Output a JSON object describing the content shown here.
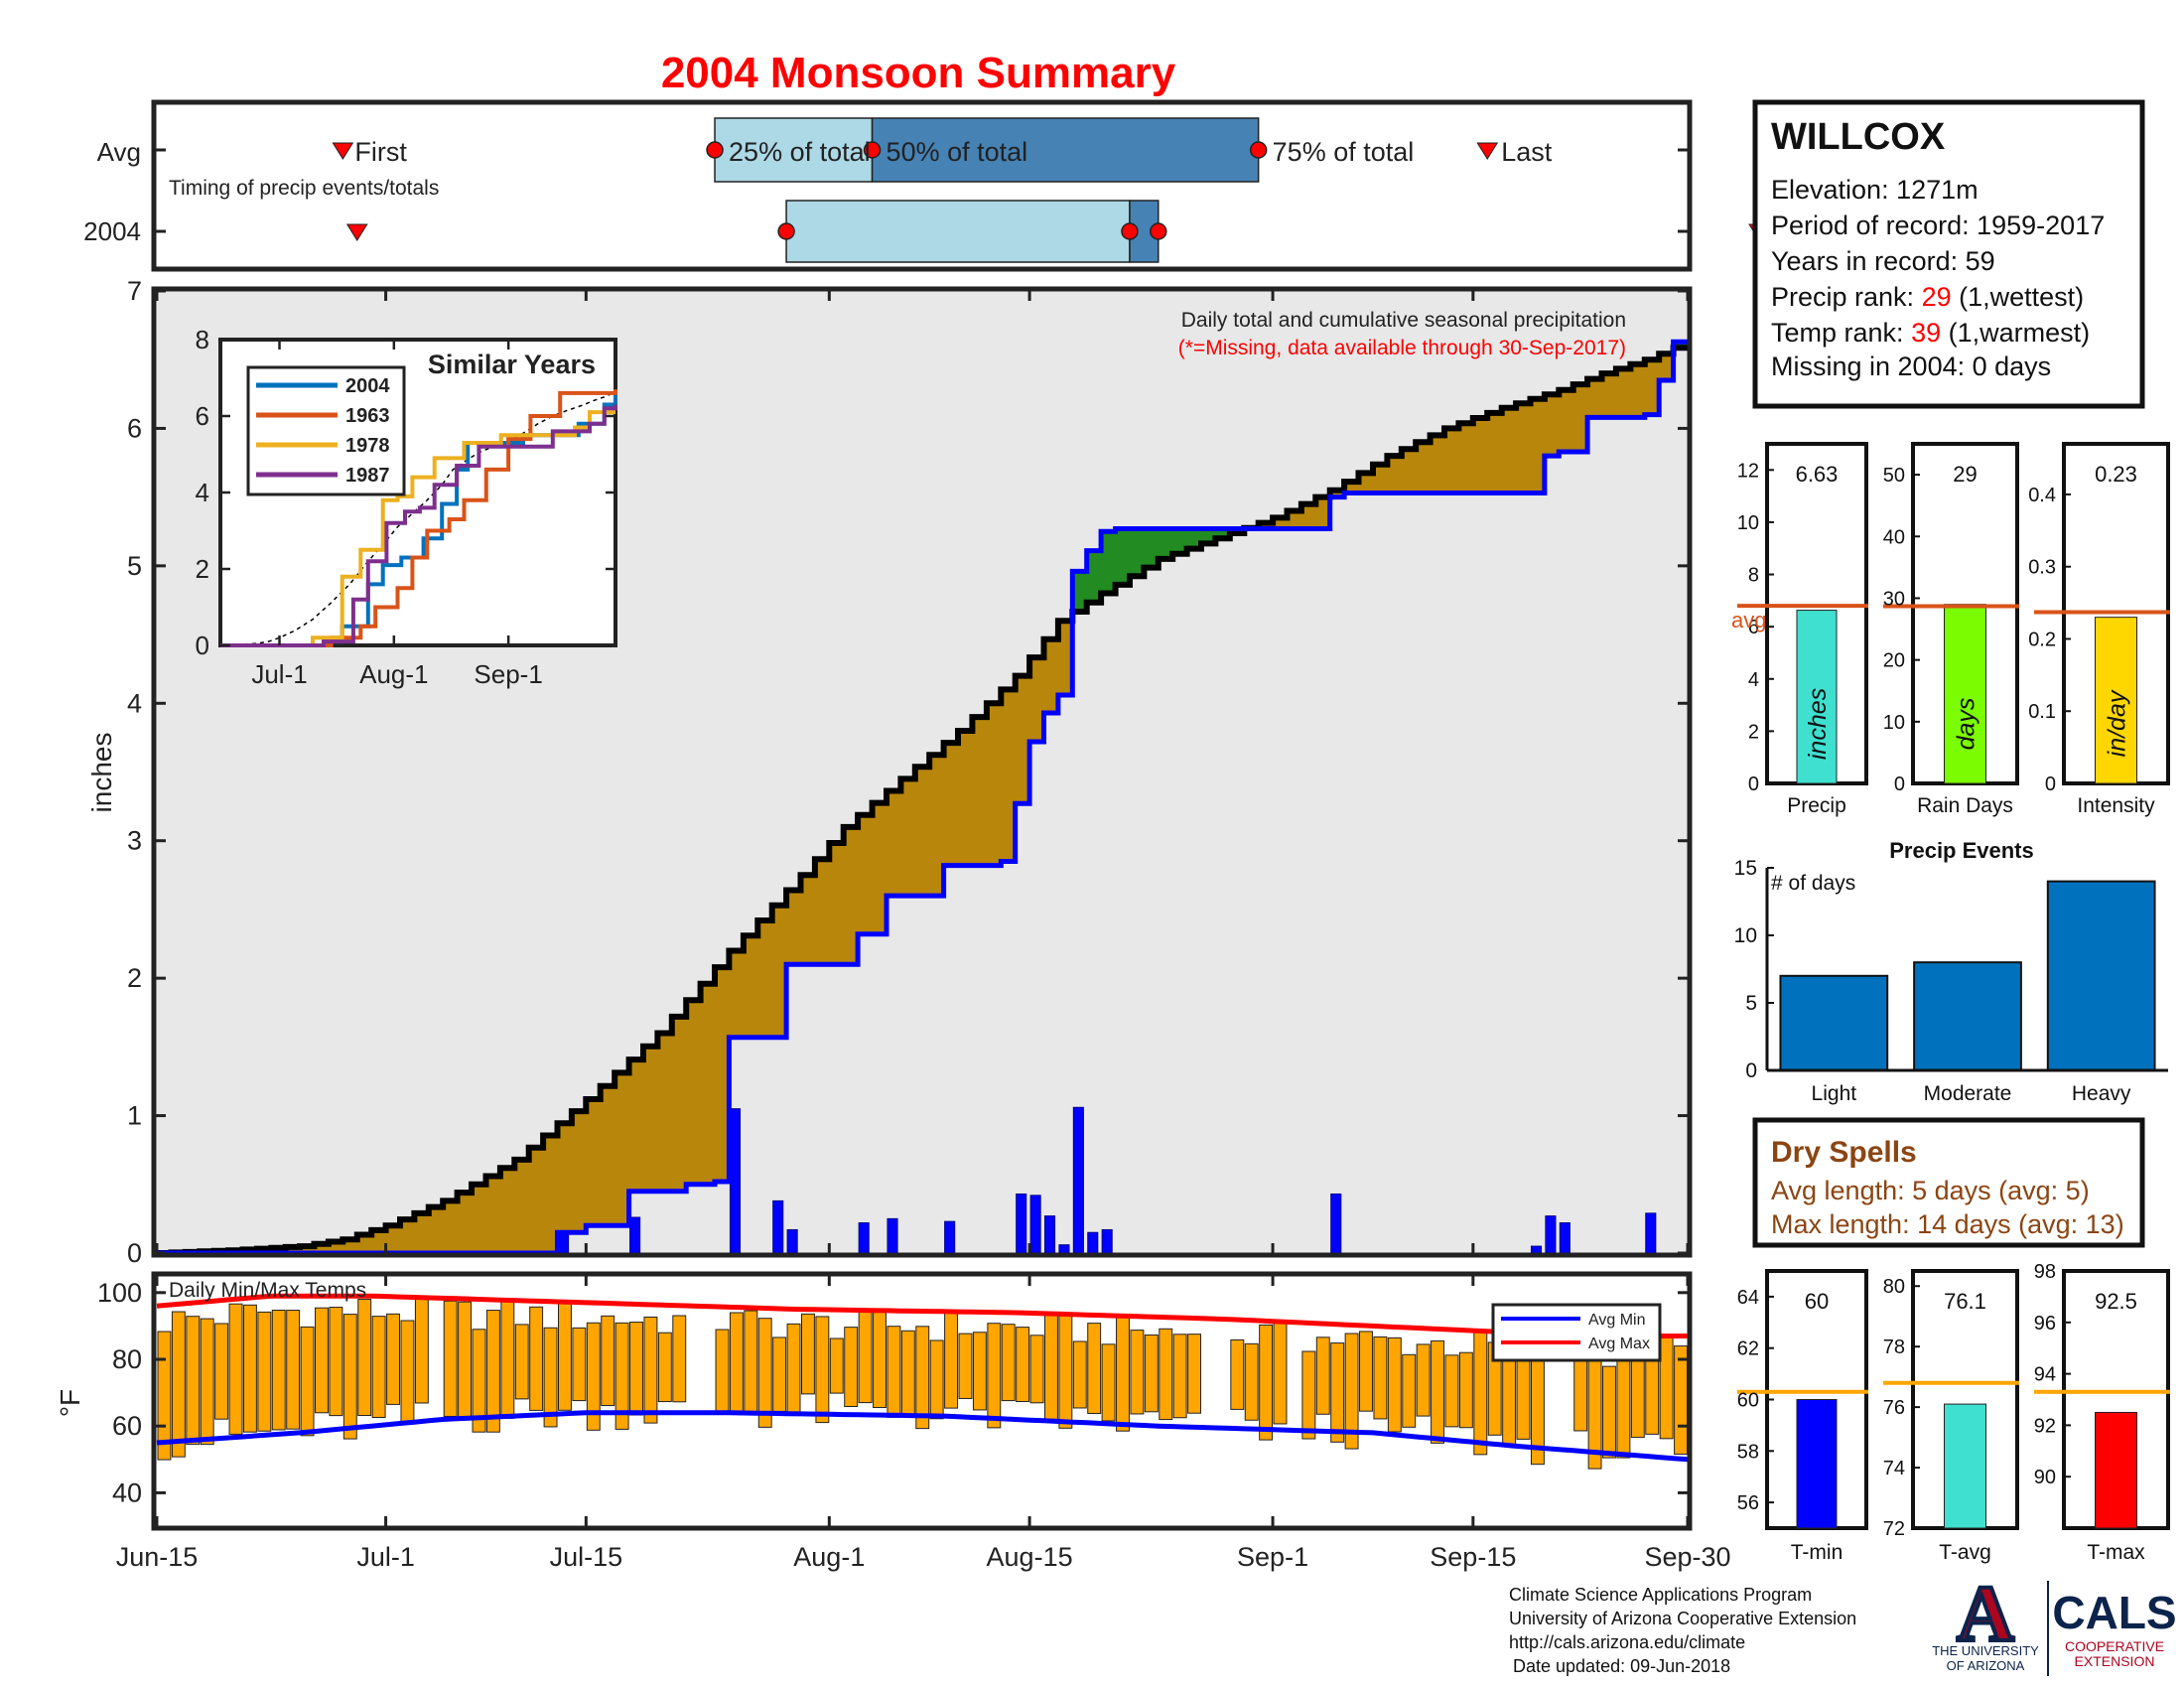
{
  "title": "2004 Monsoon Summary",
  "station": {
    "name": "WILLCOX",
    "elevation": "Elevation: 1271m",
    "period": "Period of record: 1959-2017",
    "years": "Years in record: 59",
    "precip_rank_label": "Precip rank: ",
    "precip_rank_value": "29",
    "precip_rank_suffix": " (1,wettest)",
    "temp_rank_label": "Temp rank: ",
    "temp_rank_value": "39",
    "temp_rank_suffix": " (1,warmest)",
    "missing": "Missing in 2004: 0 days"
  },
  "timing": {
    "row_labels": [
      "Avg",
      "2004"
    ],
    "caption": "Timing of precip events/totals",
    "first_label": "First",
    "last_label": "Last",
    "pct25_label": "25% of total",
    "pct50_label": "50% of total",
    "pct75_label": "75% of total",
    "avg": {
      "first": 13,
      "p25": 39,
      "p50": 50,
      "p75": 77,
      "last": 93
    },
    "y2004": {
      "first": 14,
      "p25": 44,
      "p50": 68,
      "p75": 70,
      "last": 112
    }
  },
  "chart_data": [
    {
      "id": "main",
      "type": "area",
      "title": "Daily total and cumulative seasonal precipitation",
      "note": "(*=Missing, data available through 30-Sep-2017)",
      "ylabel": "inches",
      "ylim": [
        0,
        7
      ],
      "yticks": [
        0,
        1,
        2,
        3,
        4,
        5,
        6,
        7
      ],
      "x_tick_labels": [
        "Jun-15",
        "Jul-1",
        "Jul-15",
        "Aug-1",
        "Aug-15",
        "Sep-1",
        "Sep-15",
        "Sep-30"
      ],
      "x_tick_days": [
        0,
        16,
        30,
        47,
        61,
        78,
        92,
        107
      ],
      "avg_cumulative": [
        [
          0,
          0
        ],
        [
          5,
          0.02
        ],
        [
          10,
          0.05
        ],
        [
          13,
          0.1
        ],
        [
          16,
          0.2
        ],
        [
          20,
          0.38
        ],
        [
          25,
          0.68
        ],
        [
          30,
          1.12
        ],
        [
          35,
          1.6
        ],
        [
          40,
          2.2
        ],
        [
          45,
          2.75
        ],
        [
          48,
          3.1
        ],
        [
          52,
          3.45
        ],
        [
          56,
          3.8
        ],
        [
          60,
          4.2
        ],
        [
          63,
          4.6
        ],
        [
          66,
          4.8
        ],
        [
          70,
          5.05
        ],
        [
          74,
          5.2
        ],
        [
          78,
          5.35
        ],
        [
          82,
          5.55
        ],
        [
          86,
          5.8
        ],
        [
          90,
          6.0
        ],
        [
          94,
          6.15
        ],
        [
          98,
          6.28
        ],
        [
          101,
          6.4
        ],
        [
          104,
          6.5
        ],
        [
          107,
          6.63
        ]
      ],
      "cumulative_2004": [
        [
          0,
          0
        ],
        [
          14,
          0
        ],
        [
          27,
          0
        ],
        [
          28,
          0.15
        ],
        [
          30,
          0.2
        ],
        [
          32,
          0.2
        ],
        [
          33,
          0.45
        ],
        [
          37,
          0.5
        ],
        [
          39,
          0.52
        ],
        [
          40,
          1.57
        ],
        [
          43,
          1.57
        ],
        [
          43.6,
          1.77
        ],
        [
          44,
          2.1
        ],
        [
          48,
          2.1
        ],
        [
          49,
          2.32
        ],
        [
          51,
          2.35
        ],
        [
          51.5,
          2.6
        ],
        [
          55,
          2.82
        ],
        [
          59,
          2.85
        ],
        [
          60,
          3.27
        ],
        [
          61,
          3.72
        ],
        [
          62,
          3.93
        ],
        [
          63,
          4.06
        ],
        [
          64,
          4.61
        ],
        [
          64.4,
          4.96
        ],
        [
          65.2,
          5.11
        ],
        [
          66,
          5.15
        ],
        [
          66.5,
          5.25
        ],
        [
          67,
          5.27
        ],
        [
          74,
          5.27
        ],
        [
          77,
          5.27
        ],
        [
          80,
          5.27
        ],
        [
          81.7,
          5.27
        ],
        [
          82,
          5.5
        ],
        [
          83,
          5.53
        ],
        [
          89,
          5.53
        ],
        [
          90,
          5.53
        ],
        [
          96,
          5.53
        ],
        [
          97,
          5.8
        ],
        [
          98,
          5.83
        ],
        [
          100,
          6.08
        ],
        [
          104,
          6.1
        ],
        [
          105,
          6.35
        ],
        [
          106,
          6.63
        ],
        [
          107,
          6.63
        ]
      ],
      "daily_2004": [
        [
          28,
          0.15
        ],
        [
          33,
          0.26
        ],
        [
          40,
          1.05
        ],
        [
          43,
          0.38
        ],
        [
          44,
          0.17
        ],
        [
          49,
          0.22
        ],
        [
          51,
          0.25
        ],
        [
          55,
          0.23
        ],
        [
          60,
          0.43
        ],
        [
          61,
          0.42
        ],
        [
          62,
          0.27
        ],
        [
          63,
          0.06
        ],
        [
          64,
          1.06
        ],
        [
          65,
          0.15
        ],
        [
          66,
          0.17
        ],
        [
          82,
          0.43
        ],
        [
          96,
          0.05
        ],
        [
          97,
          0.27
        ],
        [
          98,
          0.22
        ],
        [
          104,
          0.29
        ]
      ],
      "series": [
        {
          "name": "Avg cumulative",
          "color": "#000000"
        },
        {
          "name": "2004 cumulative",
          "color": "#0000ff"
        },
        {
          "name": "Daily precip",
          "color": "#0000ff"
        }
      ],
      "fills": {
        "below_avg": "#b8860b",
        "above_avg": "#228b22",
        "background": "#e8e8e8"
      }
    },
    {
      "id": "similar_years",
      "type": "line",
      "title": "Similar Years",
      "ylim": [
        0,
        8
      ],
      "yticks": [
        0,
        2,
        4,
        6,
        8
      ],
      "x_tick_labels": [
        "Jul-1",
        "Aug-1",
        "Sep-1"
      ],
      "x_tick_days": [
        16,
        47,
        78
      ],
      "series": [
        {
          "name": "2004",
          "color": "#0072bd",
          "values": [
            [
              0,
              0
            ],
            [
              28,
              0.1
            ],
            [
              33,
              0.5
            ],
            [
              40,
              1.6
            ],
            [
              44,
              2.1
            ],
            [
              49,
              2.3
            ],
            [
              55,
              2.8
            ],
            [
              60,
              3.7
            ],
            [
              64,
              4.6
            ],
            [
              67,
              5.3
            ],
            [
              82,
              5.5
            ],
            [
              97,
              5.8
            ],
            [
              104,
              6.3
            ],
            [
              107,
              6.63
            ]
          ]
        },
        {
          "name": "1963",
          "color": "#d95319",
          "values": [
            [
              0,
              0
            ],
            [
              30,
              0.2
            ],
            [
              38,
              0.5
            ],
            [
              42,
              1.0
            ],
            [
              48,
              1.5
            ],
            [
              52,
              2.3
            ],
            [
              56,
              3.0
            ],
            [
              62,
              3.3
            ],
            [
              66,
              3.8
            ],
            [
              72,
              4.6
            ],
            [
              78,
              5.4
            ],
            [
              84,
              6.0
            ],
            [
              92,
              6.6
            ],
            [
              107,
              6.7
            ]
          ]
        },
        {
          "name": "1978",
          "color": "#edb120",
          "values": [
            [
              0,
              0
            ],
            [
              25,
              0.2
            ],
            [
              33,
              1.8
            ],
            [
              38,
              2.5
            ],
            [
              44,
              3.8
            ],
            [
              48,
              3.9
            ],
            [
              52,
              4.4
            ],
            [
              58,
              4.9
            ],
            [
              66,
              5.3
            ],
            [
              76,
              5.5
            ],
            [
              88,
              5.5
            ],
            [
              96,
              5.7
            ],
            [
              100,
              6.1
            ],
            [
              107,
              6.1
            ]
          ]
        },
        {
          "name": "1987",
          "color": "#7e2f8e",
          "values": [
            [
              0,
              0
            ],
            [
              28,
              0.1
            ],
            [
              36,
              1.2
            ],
            [
              40,
              2.2
            ],
            [
              45,
              3.2
            ],
            [
              50,
              3.5
            ],
            [
              54,
              3.6
            ],
            [
              58,
              4.2
            ],
            [
              64,
              4.7
            ],
            [
              70,
              5.2
            ],
            [
              80,
              5.2
            ],
            [
              90,
              5.6
            ],
            [
              100,
              5.8
            ],
            [
              104,
              6.2
            ],
            [
              107,
              6.3
            ]
          ]
        }
      ],
      "avg_line_color": "#000000"
    },
    {
      "id": "temps",
      "type": "bar",
      "title": "Daily Min/Max Temps",
      "ylabel": "°F",
      "ylim": [
        30,
        105
      ],
      "yticks": [
        40,
        60,
        80,
        100
      ],
      "legend": [
        "Avg Min",
        "Avg Max"
      ],
      "legend_colors": [
        "#0000ff",
        "#ff0000"
      ],
      "bar_color": "#ffa500",
      "avg_max": [
        [
          0,
          96
        ],
        [
          8,
          99
        ],
        [
          15,
          99
        ],
        [
          30,
          97
        ],
        [
          45,
          95
        ],
        [
          60,
          94
        ],
        [
          75,
          92
        ],
        [
          90,
          89
        ],
        [
          100,
          87
        ],
        [
          107,
          87
        ]
      ],
      "avg_min": [
        [
          0,
          55
        ],
        [
          10,
          58
        ],
        [
          20,
          62
        ],
        [
          30,
          64
        ],
        [
          40,
          64
        ],
        [
          55,
          63
        ],
        [
          70,
          60
        ],
        [
          85,
          58
        ],
        [
          95,
          54
        ],
        [
          107,
          50
        ]
      ]
    },
    {
      "id": "season_totals",
      "type": "bar",
      "average_label": "avg",
      "avg_color": "#d95319",
      "panels": [
        {
          "category": "Precip",
          "value": 6.63,
          "value_label": "6.63",
          "unit": "inches",
          "avg": 6.8,
          "ylim": [
            0,
            13
          ],
          "yticks": [
            0,
            2,
            4,
            6,
            8,
            10,
            12
          ],
          "color": "#40e0d0"
        },
        {
          "category": "Rain Days",
          "value": 29,
          "value_label": "29",
          "unit": "days",
          "avg": 28.7,
          "ylim": [
            0,
            55
          ],
          "yticks": [
            0,
            10,
            20,
            30,
            40,
            50
          ],
          "color": "#7cfc00"
        },
        {
          "category": "Intensity",
          "value": 0.23,
          "value_label": "0.23",
          "unit": "in/day",
          "avg": 0.237,
          "ylim": [
            0,
            0.47
          ],
          "yticks": [
            0,
            0.1,
            0.2,
            0.3,
            0.4
          ],
          "ytick_labels": [
            "0",
            "0.1",
            "0.2",
            "0.3",
            "0.4"
          ],
          "color": "#ffd700"
        }
      ]
    },
    {
      "id": "precip_events",
      "type": "bar",
      "title": "Precip Events",
      "ylabel_note": "# of days",
      "categories": [
        "Light",
        "Moderate",
        "Heavy"
      ],
      "values": [
        7,
        8,
        14
      ],
      "ylim": [
        0,
        15
      ],
      "yticks": [
        0,
        5,
        10,
        15
      ],
      "color": "#0072bd"
    },
    {
      "id": "temp_totals",
      "type": "bar",
      "avg_color": "#ffa500",
      "panels": [
        {
          "category": "T-min",
          "value": 60,
          "value_label": "60",
          "avg": 60.3,
          "ylim": [
            55,
            65
          ],
          "yticks": [
            56,
            58,
            60,
            62,
            64
          ],
          "color": "#0000ff"
        },
        {
          "category": "T-avg",
          "value": 76.1,
          "value_label": "76.1",
          "avg": 76.8,
          "ylim": [
            72,
            80.5
          ],
          "yticks": [
            72,
            74,
            76,
            78,
            80
          ],
          "color": "#40e0d0"
        },
        {
          "category": "T-max",
          "value": 92.5,
          "value_label": "92.5",
          "avg": 93.3,
          "ylim": [
            88,
            98
          ],
          "yticks": [
            90,
            92,
            94,
            96,
            98
          ],
          "color": "#ff0000"
        }
      ]
    }
  ],
  "dry_spells": {
    "title": "Dry Spells",
    "avg_length": "Avg length: 5 days (avg: 5)",
    "max_length": "Max length: 14 days (avg: 13)"
  },
  "footer": {
    "lines": [
      "Climate Science Applications Program",
      "University of Arizona Cooperative Extension",
      "http://cals.arizona.edu/climate",
      "Date updated: 09-Jun-2018"
    ]
  },
  "logo": {
    "ua_letter": "A",
    "ua_name_1": "THE UNIVERSITY",
    "ua_name_2": "OF ARIZONA",
    "cals": "CALS",
    "cals_sub_1": "COOPERATIVE",
    "cals_sub_2": "EXTENSION"
  },
  "colors": {
    "title_red": "#ff0000",
    "rank_red": "#ff0000",
    "dry_brown": "#8b4513"
  }
}
